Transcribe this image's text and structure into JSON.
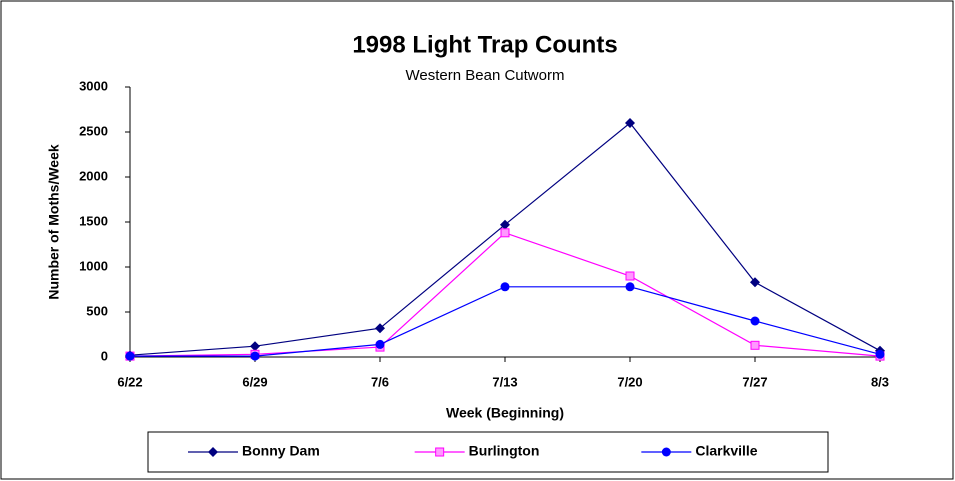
{
  "chart_data": {
    "type": "line",
    "title": "1998 Light Trap Counts",
    "subtitle": "Western Bean Cutworm",
    "x_label": "Week (Beginning)",
    "y_label": "Number of Moths/Week",
    "categories": [
      "6/22",
      "6/29",
      "7/6",
      "7/13",
      "7/20",
      "7/27",
      "8/3"
    ],
    "series": [
      {
        "name": "Bonny Dam",
        "color": "#000080",
        "marker": "diamond",
        "values": [
          20,
          120,
          320,
          1470,
          2600,
          830,
          70
        ]
      },
      {
        "name": "Burlington",
        "color": "#ff00ff",
        "marker": "square",
        "values": [
          10,
          30,
          110,
          1380,
          900,
          130,
          10
        ]
      },
      {
        "name": "Clarkville",
        "color": "#0000ff",
        "marker": "circle",
        "values": [
          10,
          10,
          140,
          780,
          780,
          400,
          30
        ]
      }
    ],
    "ylim": [
      0,
      3000
    ],
    "yticks": [
      0,
      500,
      1000,
      1500,
      2000,
      2500,
      3000
    ],
    "legend": "bottom"
  }
}
